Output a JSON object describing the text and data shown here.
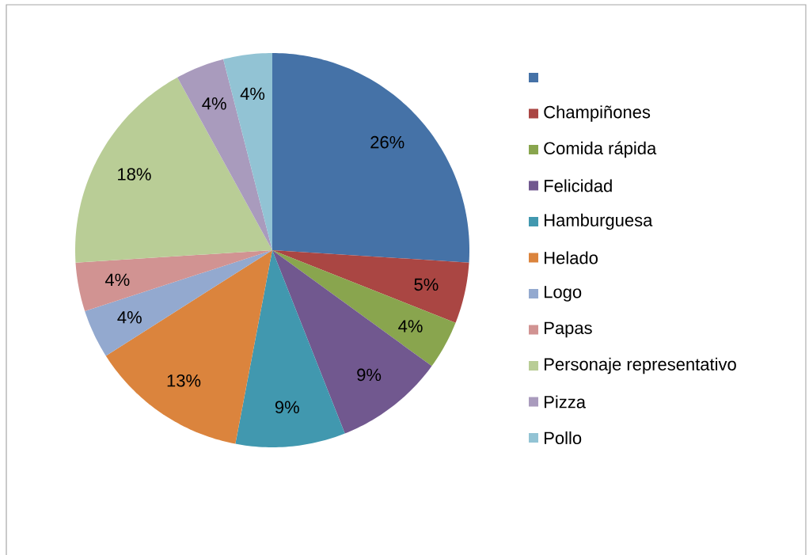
{
  "chart_data": {
    "type": "pie",
    "categories": [
      null,
      "Champiñones",
      "Comida rápida",
      "Felicidad",
      "Hamburguesa",
      "Helado",
      "Logo",
      "Papas",
      "Personaje representativo",
      "Pizza",
      "Pollo"
    ],
    "values": [
      26,
      5,
      4,
      9,
      9,
      13,
      4,
      4,
      18,
      4,
      4
    ],
    "colors": [
      "#4572a7",
      "#aa4643",
      "#89a54e",
      "#71588f",
      "#4198af",
      "#db843d",
      "#93a9cf",
      "#d19392",
      "#b9cd96",
      "#a99bbd",
      "#92c3d4"
    ],
    "value_labels": [
      "26%",
      "5%",
      "4%",
      "9%",
      "9%",
      "13%",
      "4%",
      "4%",
      "18%",
      "4%",
      "4%"
    ],
    "legend": "right"
  }
}
